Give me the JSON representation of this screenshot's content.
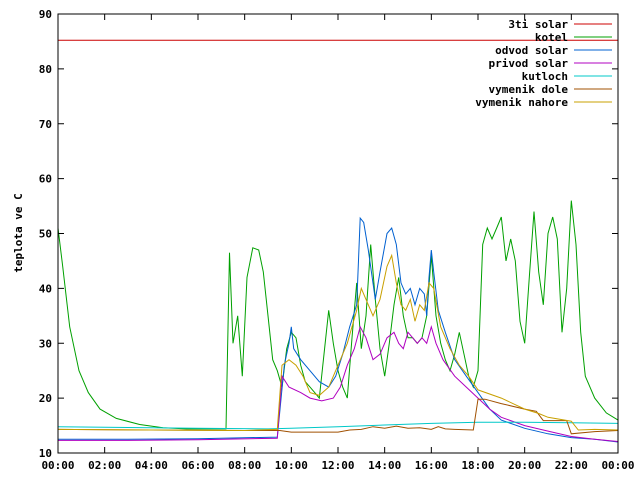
{
  "chart_data": {
    "type": "line",
    "ylabel": "teplota ve C",
    "xlabel": "",
    "xlim": [
      0,
      24
    ],
    "ylim": [
      10,
      90
    ],
    "x_ticks": [
      "00:00",
      "02:00",
      "04:00",
      "06:00",
      "08:00",
      "10:00",
      "12:00",
      "14:00",
      "16:00",
      "18:00",
      "20:00",
      "22:00",
      "00:00"
    ],
    "y_ticks": [
      "10",
      "20",
      "30",
      "40",
      "50",
      "60",
      "70",
      "80",
      "90"
    ],
    "legend_position": "top-right",
    "series": [
      {
        "name": "3ti solar",
        "color": "#cc0000",
        "points": [
          [
            0,
            85.2
          ],
          [
            24,
            85.2
          ]
        ]
      },
      {
        "name": "kotel",
        "color": "#00a000",
        "points": [
          [
            0,
            51
          ],
          [
            0.2,
            44
          ],
          [
            0.5,
            33
          ],
          [
            0.9,
            25
          ],
          [
            1.3,
            21
          ],
          [
            1.8,
            18
          ],
          [
            2.5,
            16.3
          ],
          [
            3.5,
            15.2
          ],
          [
            4.5,
            14.6
          ],
          [
            5.5,
            14.4
          ],
          [
            6.5,
            14.4
          ],
          [
            7.2,
            14.4
          ],
          [
            7.35,
            46.5
          ],
          [
            7.5,
            30
          ],
          [
            7.7,
            35
          ],
          [
            7.9,
            24
          ],
          [
            8.1,
            42
          ],
          [
            8.35,
            47.4
          ],
          [
            8.6,
            47
          ],
          [
            8.8,
            43
          ],
          [
            9,
            35
          ],
          [
            9.2,
            27
          ],
          [
            9.4,
            25
          ],
          [
            9.6,
            22
          ],
          [
            9.8,
            29
          ],
          [
            10,
            32
          ],
          [
            10.2,
            31
          ],
          [
            10.4,
            26
          ],
          [
            10.6,
            23
          ],
          [
            10.8,
            22
          ],
          [
            11,
            21
          ],
          [
            11.2,
            20
          ],
          [
            11.4,
            28
          ],
          [
            11.6,
            36
          ],
          [
            11.8,
            30
          ],
          [
            12,
            25
          ],
          [
            12.2,
            22
          ],
          [
            12.4,
            20
          ],
          [
            12.6,
            31
          ],
          [
            12.8,
            41
          ],
          [
            13,
            29
          ],
          [
            13.2,
            35
          ],
          [
            13.4,
            48
          ],
          [
            13.6,
            38
          ],
          [
            13.8,
            29
          ],
          [
            14,
            24
          ],
          [
            14.2,
            30
          ],
          [
            14.4,
            37
          ],
          [
            14.6,
            42
          ],
          [
            14.8,
            35
          ],
          [
            15,
            31
          ],
          [
            15.2,
            31
          ],
          [
            15.4,
            30
          ],
          [
            15.6,
            31
          ],
          [
            15.8,
            35
          ],
          [
            16,
            46
          ],
          [
            16.2,
            35
          ],
          [
            16.4,
            30
          ],
          [
            16.6,
            27
          ],
          [
            16.8,
            25
          ],
          [
            17,
            28
          ],
          [
            17.2,
            32
          ],
          [
            17.4,
            28
          ],
          [
            17.6,
            24
          ],
          [
            17.8,
            22
          ],
          [
            18,
            25
          ],
          [
            18.2,
            48
          ],
          [
            18.4,
            51
          ],
          [
            18.6,
            49
          ],
          [
            18.8,
            51
          ],
          [
            19,
            53
          ],
          [
            19.2,
            45
          ],
          [
            19.4,
            49
          ],
          [
            19.6,
            45
          ],
          [
            19.8,
            34
          ],
          [
            20,
            30
          ],
          [
            20.2,
            42
          ],
          [
            20.4,
            54
          ],
          [
            20.6,
            43
          ],
          [
            20.8,
            37
          ],
          [
            21,
            50
          ],
          [
            21.2,
            53
          ],
          [
            21.4,
            49
          ],
          [
            21.6,
            32
          ],
          [
            21.8,
            40
          ],
          [
            22,
            56
          ],
          [
            22.2,
            48
          ],
          [
            22.4,
            32
          ],
          [
            22.6,
            24
          ],
          [
            23,
            20
          ],
          [
            23.5,
            17.3
          ],
          [
            24,
            16
          ]
        ]
      },
      {
        "name": "odvod solar",
        "color": "#0060d0",
        "points": [
          [
            0,
            12.5
          ],
          [
            3,
            12.5
          ],
          [
            6,
            12.6
          ],
          [
            9.4,
            12.9
          ],
          [
            9.7,
            26
          ],
          [
            9.9,
            30
          ],
          [
            10,
            33
          ],
          [
            10.1,
            29
          ],
          [
            10.4,
            27
          ],
          [
            10.8,
            25
          ],
          [
            11.2,
            23
          ],
          [
            11.6,
            22
          ],
          [
            11.9,
            24
          ],
          [
            12.2,
            28
          ],
          [
            12.5,
            33
          ],
          [
            12.8,
            37
          ],
          [
            12.95,
            52.8
          ],
          [
            13.1,
            52
          ],
          [
            13.3,
            47
          ],
          [
            13.6,
            38
          ],
          [
            13.8,
            43
          ],
          [
            14.1,
            50
          ],
          [
            14.3,
            51
          ],
          [
            14.5,
            48
          ],
          [
            14.7,
            41
          ],
          [
            14.9,
            39
          ],
          [
            15.1,
            40
          ],
          [
            15.3,
            37
          ],
          [
            15.5,
            40
          ],
          [
            15.7,
            39
          ],
          [
            15.8,
            35
          ],
          [
            15.9,
            42
          ],
          [
            16,
            47
          ],
          [
            16.1,
            43
          ],
          [
            16.3,
            36
          ],
          [
            16.6,
            32
          ],
          [
            17,
            27
          ],
          [
            17.5,
            24
          ],
          [
            18,
            21
          ],
          [
            18.5,
            18
          ],
          [
            19,
            16
          ],
          [
            20,
            14.5
          ],
          [
            21,
            13.5
          ],
          [
            22,
            12.8
          ],
          [
            23,
            12.5
          ],
          [
            24,
            12
          ]
        ]
      },
      {
        "name": "privod solar",
        "color": "#b000c0",
        "points": [
          [
            0,
            12.3
          ],
          [
            3,
            12.3
          ],
          [
            6,
            12.4
          ],
          [
            9.4,
            12.7
          ],
          [
            9.6,
            24
          ],
          [
            9.9,
            22
          ],
          [
            10.4,
            21
          ],
          [
            10.8,
            20
          ],
          [
            11.3,
            19.5
          ],
          [
            11.8,
            20
          ],
          [
            12.1,
            22
          ],
          [
            12.4,
            26
          ],
          [
            12.7,
            29
          ],
          [
            12.95,
            33
          ],
          [
            13.2,
            31
          ],
          [
            13.5,
            27
          ],
          [
            13.8,
            28
          ],
          [
            14.1,
            31
          ],
          [
            14.4,
            32
          ],
          [
            14.6,
            30
          ],
          [
            14.8,
            29
          ],
          [
            15,
            32
          ],
          [
            15.2,
            31
          ],
          [
            15.4,
            30
          ],
          [
            15.6,
            31
          ],
          [
            15.8,
            30
          ],
          [
            16,
            33
          ],
          [
            16.2,
            30
          ],
          [
            16.5,
            27
          ],
          [
            17,
            24
          ],
          [
            17.5,
            22
          ],
          [
            18,
            20
          ],
          [
            18.5,
            18
          ],
          [
            19,
            16.5
          ],
          [
            20,
            15
          ],
          [
            21,
            14
          ],
          [
            22,
            13
          ],
          [
            23,
            12.5
          ],
          [
            24,
            12.1
          ]
        ]
      },
      {
        "name": "kutloch",
        "color": "#00c8c8",
        "points": [
          [
            0,
            14.8
          ],
          [
            6,
            14.5
          ],
          [
            9,
            14.4
          ],
          [
            10,
            14.5
          ],
          [
            12,
            14.8
          ],
          [
            14,
            15.1
          ],
          [
            16,
            15.4
          ],
          [
            18,
            15.6
          ],
          [
            20,
            15.6
          ],
          [
            22,
            15.5
          ],
          [
            24,
            15.4
          ]
        ]
      },
      {
        "name": "vymenik dole",
        "color": "#a05000",
        "points": [
          [
            0,
            14.3
          ],
          [
            4,
            14.2
          ],
          [
            8,
            14.1
          ],
          [
            9.5,
            14.1
          ],
          [
            10,
            13.8
          ],
          [
            11,
            13.8
          ],
          [
            12,
            13.8
          ],
          [
            12.5,
            14.2
          ],
          [
            13,
            14.3
          ],
          [
            13.5,
            14.8
          ],
          [
            14,
            14.5
          ],
          [
            14.5,
            14.9
          ],
          [
            15,
            14.5
          ],
          [
            15.5,
            14.6
          ],
          [
            16,
            14.3
          ],
          [
            16.3,
            14.8
          ],
          [
            16.6,
            14.4
          ],
          [
            17,
            14.3
          ],
          [
            17.8,
            14.2
          ],
          [
            18,
            19.8
          ],
          [
            18.3,
            19.8
          ],
          [
            19,
            19
          ],
          [
            20,
            18
          ],
          [
            20.5,
            17.6
          ],
          [
            20.8,
            15.9
          ],
          [
            21.3,
            15.9
          ],
          [
            21.8,
            15.9
          ],
          [
            22,
            13.5
          ],
          [
            23,
            13.9
          ],
          [
            24,
            14.1
          ]
        ]
      },
      {
        "name": "vymenik nahore",
        "color": "#c8a000",
        "points": [
          [
            0,
            14.3
          ],
          [
            4,
            14.2
          ],
          [
            8,
            14.1
          ],
          [
            9.4,
            14.3
          ],
          [
            9.6,
            26
          ],
          [
            9.9,
            27
          ],
          [
            10.2,
            26
          ],
          [
            10.5,
            24
          ],
          [
            10.8,
            21
          ],
          [
            11.2,
            20.5
          ],
          [
            11.6,
            22
          ],
          [
            12,
            26
          ],
          [
            12.4,
            30
          ],
          [
            12.8,
            36
          ],
          [
            13,
            40
          ],
          [
            13.2,
            38
          ],
          [
            13.5,
            35
          ],
          [
            13.8,
            38
          ],
          [
            14.1,
            44
          ],
          [
            14.3,
            46
          ],
          [
            14.5,
            41
          ],
          [
            14.7,
            37
          ],
          [
            14.9,
            36
          ],
          [
            15.1,
            38
          ],
          [
            15.3,
            34
          ],
          [
            15.5,
            37
          ],
          [
            15.7,
            36
          ],
          [
            15.9,
            41
          ],
          [
            16.1,
            40
          ],
          [
            16.4,
            33
          ],
          [
            16.8,
            29
          ],
          [
            17.2,
            26
          ],
          [
            17.6,
            24
          ],
          [
            18,
            21.5
          ],
          [
            19,
            20
          ],
          [
            20,
            18
          ],
          [
            20.6,
            17.2
          ],
          [
            21,
            16.5
          ],
          [
            22,
            15.8
          ],
          [
            22.3,
            14.2
          ],
          [
            23,
            14.3
          ],
          [
            24,
            14.2
          ]
        ]
      }
    ]
  }
}
